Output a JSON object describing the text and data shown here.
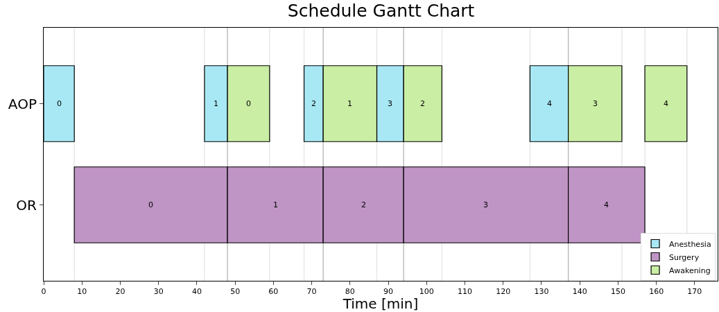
{
  "chart_data": {
    "type": "bar",
    "orientation": "horizontal",
    "title": "Schedule Gantt Chart",
    "xlabel": "Time [min]",
    "categories": [
      "AOP",
      "OR"
    ],
    "series": [
      {
        "name": "Anesthesia",
        "color": "#a8e8f4",
        "base": [
          0,
          null
        ],
        "values": [
          8,
          null
        ]
      },
      {
        "color": "#a8e8f4",
        "base": [
          42,
          null
        ],
        "values": [
          6,
          null
        ]
      },
      {
        "color": "#a8e8f4",
        "base": [
          68,
          null
        ],
        "values": [
          5,
          null
        ]
      },
      {
        "color": "#a8e8f4",
        "base": [
          87,
          null
        ],
        "values": [
          7,
          null
        ]
      },
      {
        "color": "#a8e8f4",
        "base": [
          127,
          null
        ],
        "values": [
          10,
          null
        ]
      },
      {
        "name": "Surgery",
        "color": "#bf95c5",
        "base": [
          null,
          8
        ],
        "values": [
          null,
          40
        ]
      },
      {
        "color": "#bf95c5",
        "base": [
          null,
          48
        ],
        "values": [
          null,
          25
        ]
      },
      {
        "color": "#bf95c5",
        "base": [
          null,
          73
        ],
        "values": [
          null,
          21
        ]
      },
      {
        "color": "#bf95c5",
        "base": [
          null,
          94
        ],
        "values": [
          null,
          43
        ]
      },
      {
        "color": "#bf95c5",
        "base": [
          null,
          137
        ],
        "values": [
          null,
          20
        ]
      },
      {
        "name": "Awakening",
        "color": "#c9eea4",
        "base": [
          48,
          null
        ],
        "values": [
          11,
          null
        ]
      },
      {
        "color": "#c9eea4",
        "base": [
          73,
          null
        ],
        "values": [
          14,
          null
        ]
      },
      {
        "color": "#c9eea4",
        "base": [
          94,
          null
        ],
        "values": [
          10,
          null
        ]
      },
      {
        "color": "#c9eea4",
        "base": [
          137,
          null
        ],
        "values": [
          14,
          null
        ]
      },
      {
        "color": "#c9eea4",
        "base": [
          157,
          null
        ],
        "values": [
          11,
          null
        ]
      }
    ],
    "annotations": [
      "0",
      "1",
      "2",
      "3",
      "4",
      "0",
      "1",
      "2",
      "3",
      "4",
      "0",
      "1",
      "2",
      "3",
      "4"
    ],
    "ref_lines": [
      {
        "axis": "x",
        "value": 8,
        "color": "#e4e4e4"
      },
      {
        "axis": "x",
        "value": 42,
        "color": "#e4e4e4"
      },
      {
        "axis": "x",
        "value": 48,
        "color": "#b4b4b4"
      },
      {
        "axis": "x",
        "value": 59,
        "color": "#e4e4e4"
      },
      {
        "axis": "x",
        "value": 68,
        "color": "#e4e4e4"
      },
      {
        "axis": "x",
        "value": 73,
        "color": "#b4b4b4"
      },
      {
        "axis": "x",
        "value": 87,
        "color": "#e4e4e4"
      },
      {
        "axis": "x",
        "value": 94,
        "color": "#b4b4b4"
      },
      {
        "axis": "x",
        "value": 104,
        "color": "#e4e4e4"
      },
      {
        "axis": "x",
        "value": 127,
        "color": "#e4e4e4"
      },
      {
        "axis": "x",
        "value": 137,
        "color": "#b4b4b4"
      },
      {
        "axis": "x",
        "value": 151,
        "color": "#e4e4e4"
      },
      {
        "axis": "x",
        "value": 157,
        "color": "#e4e4e4"
      },
      {
        "axis": "x",
        "value": 168,
        "color": "#e4e4e4"
      }
    ],
    "xlim": [
      0,
      176
    ],
    "xticks": [
      0,
      10,
      20,
      30,
      40,
      50,
      60,
      70,
      80,
      90,
      100,
      110,
      120,
      130,
      140,
      150,
      160,
      170
    ],
    "legend": "bottom right"
  }
}
